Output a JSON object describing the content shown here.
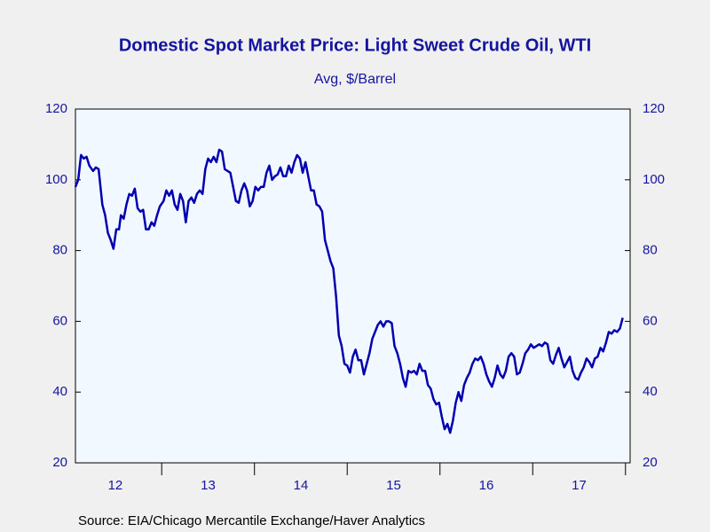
{
  "chart_data": {
    "type": "line",
    "title": "Domestic Spot Market Price: Light Sweet Crude Oil, WTI",
    "subtitle": "Avg, $/Barrel",
    "source": "Source:  EIA/Chicago Mercantile Exchange/Haver Analytics",
    "xlim": [
      2012.07,
      2018.05
    ],
    "xticks": [
      2013,
      2014,
      2015,
      2016,
      2017,
      2018
    ],
    "x_labels": [
      {
        "value": 2012.5,
        "label": "12"
      },
      {
        "value": 2013.5,
        "label": "13"
      },
      {
        "value": 2014.5,
        "label": "14"
      },
      {
        "value": 2015.5,
        "label": "15"
      },
      {
        "value": 2016.5,
        "label": "16"
      },
      {
        "value": 2017.5,
        "label": "17"
      }
    ],
    "ylim": [
      20,
      120
    ],
    "yticks": [
      20,
      40,
      60,
      80,
      100,
      120
    ],
    "y2lim": [
      20,
      120
    ],
    "y2ticks": [
      20,
      40,
      60,
      80,
      100,
      120
    ],
    "grid": false,
    "series": [
      {
        "color": "#0000b0",
        "x": [
          2012.07,
          2012.1,
          2012.13,
          2012.16,
          2012.19,
          2012.22,
          2012.26,
          2012.29,
          2012.32,
          2012.36,
          2012.39,
          2012.42,
          2012.45,
          2012.48,
          2012.51,
          2012.54,
          2012.56,
          2012.59,
          2012.62,
          2012.65,
          2012.68,
          2012.71,
          2012.74,
          2012.77,
          2012.8,
          2012.83,
          2012.86,
          2012.89,
          2012.92,
          2012.95,
          2012.98,
          2013.02,
          2013.05,
          2013.08,
          2013.11,
          2013.14,
          2013.17,
          2013.2,
          2013.23,
          2013.26,
          2013.29,
          2013.32,
          2013.35,
          2013.38,
          2013.41,
          2013.44,
          2013.47,
          2013.5,
          2013.53,
          2013.56,
          2013.59,
          2013.62,
          2013.65,
          2013.68,
          2013.71,
          2013.74,
          2013.77,
          2013.8,
          2013.83,
          2013.86,
          2013.89,
          2013.92,
          2013.95,
          2013.98,
          2014.01,
          2014.04,
          2014.07,
          2014.1,
          2014.13,
          2014.16,
          2014.19,
          2014.22,
          2014.25,
          2014.28,
          2014.31,
          2014.34,
          2014.37,
          2014.4,
          2014.43,
          2014.46,
          2014.49,
          2014.52,
          2014.55,
          2014.58,
          2014.61,
          2014.64,
          2014.67,
          2014.7,
          2014.73,
          2014.76,
          2014.79,
          2014.82,
          2014.85,
          2014.88,
          2014.91,
          2014.94,
          2014.97,
          2015.0,
          2015.03,
          2015.06,
          2015.09,
          2015.12,
          2015.15,
          2015.18,
          2015.21,
          2015.24,
          2015.27,
          2015.3,
          2015.33,
          2015.36,
          2015.39,
          2015.42,
          2015.45,
          2015.48,
          2015.51,
          2015.54,
          2015.57,
          2015.6,
          2015.63,
          2015.66,
          2015.69,
          2015.72,
          2015.75,
          2015.78,
          2015.81,
          2015.84,
          2015.87,
          2015.9,
          2015.93,
          2015.96,
          2015.99,
          2016.02,
          2016.05,
          2016.08,
          2016.11,
          2016.14,
          2016.17,
          2016.2,
          2016.23,
          2016.26,
          2016.29,
          2016.32,
          2016.35,
          2016.38,
          2016.41,
          2016.44,
          2016.47,
          2016.5,
          2016.53,
          2016.56,
          2016.59,
          2016.62,
          2016.65,
          2016.68,
          2016.71,
          2016.74,
          2016.77,
          2016.8,
          2016.83,
          2016.86,
          2016.89,
          2016.92,
          2016.95,
          2016.98,
          2017.01,
          2017.04,
          2017.07,
          2017.1,
          2017.13,
          2017.16,
          2017.19,
          2017.22,
          2017.25,
          2017.28,
          2017.31,
          2017.34,
          2017.37,
          2017.4,
          2017.43,
          2017.46,
          2017.49,
          2017.52,
          2017.55,
          2017.58,
          2017.61,
          2017.64,
          2017.67,
          2017.7,
          2017.73,
          2017.76,
          2017.79,
          2017.82,
          2017.85,
          2017.88,
          2017.91,
          2017.94,
          2017.97
        ],
        "values": [
          98,
          100,
          107,
          106,
          106.5,
          104,
          102.5,
          103.5,
          103,
          93,
          90,
          85,
          83,
          80.5,
          86,
          86,
          90,
          89,
          93,
          96,
          95.5,
          97.5,
          92,
          91,
          91.5,
          86,
          86,
          88,
          87,
          90,
          92.5,
          94,
          97,
          95.5,
          97,
          93,
          91.5,
          96,
          94,
          88,
          94,
          95,
          93.5,
          96,
          97,
          96,
          103,
          106,
          105,
          106.5,
          105,
          108.5,
          108,
          103,
          102.5,
          102,
          98,
          94,
          93.5,
          97,
          99,
          97,
          92.5,
          94,
          98,
          97,
          98,
          98,
          102,
          104,
          100,
          101,
          101.5,
          103.5,
          101,
          101,
          104,
          102,
          105,
          107,
          106,
          102,
          105,
          101,
          97,
          97,
          93,
          92.5,
          91,
          83,
          80,
          77,
          75,
          67,
          56,
          53,
          48,
          47.5,
          45.5,
          50,
          52,
          49,
          49,
          45,
          48,
          51,
          55,
          57,
          59,
          60,
          58.5,
          60,
          60,
          59.5,
          53,
          51,
          48,
          44,
          41.5,
          46,
          45.5,
          46,
          45,
          48,
          46,
          46,
          42,
          41,
          38,
          36.5,
          37,
          33,
          29.5,
          31,
          28.5,
          32,
          37,
          40,
          37.5,
          42,
          44,
          45.5,
          48,
          49.5,
          49,
          50,
          48,
          45,
          43,
          41.5,
          44,
          47.5,
          45,
          44,
          46,
          50,
          51,
          50,
          45,
          45.5,
          48,
          51,
          52,
          53.5,
          52.5,
          53,
          53.5,
          53,
          54,
          53.5,
          49,
          48,
          50.5,
          52.5,
          49.5,
          47,
          48.5,
          50,
          46,
          44,
          43.5,
          45.5,
          47,
          49.5,
          48.5,
          47,
          49.5,
          50,
          52.5,
          51.5,
          54,
          57,
          56.5,
          57.5,
          57,
          58,
          61
        ]
      }
    ]
  }
}
